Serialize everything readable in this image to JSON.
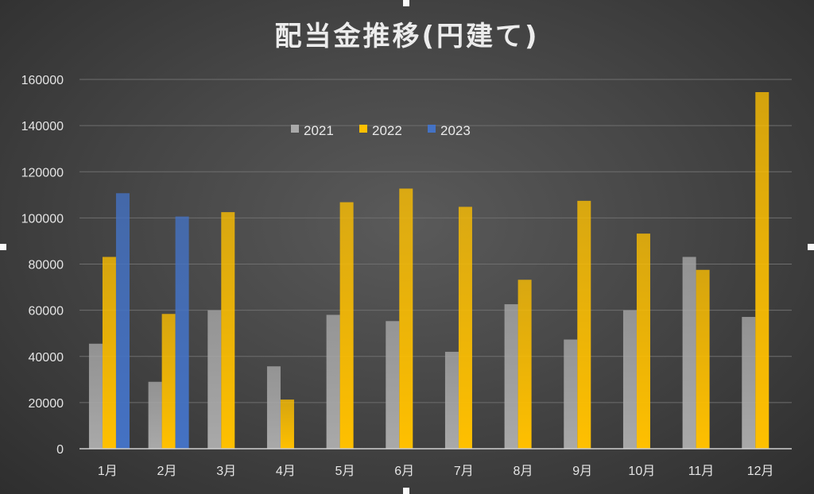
{
  "chart_data": {
    "type": "bar",
    "title": "配当金推移(円建て)",
    "categories": [
      "1月",
      "2月",
      "3月",
      "4月",
      "5月",
      "6月",
      "7月",
      "8月",
      "9月",
      "10月",
      "11月",
      "12月"
    ],
    "series": [
      {
        "name": "2021",
        "color": "#a9a9a9",
        "values": [
          45500,
          29000,
          60000,
          35700,
          58000,
          55300,
          42000,
          62600,
          47300,
          60000,
          83100,
          57100
        ]
      },
      {
        "name": "2022",
        "color": "#ffc000",
        "values": [
          83100,
          58400,
          102500,
          21300,
          106800,
          112700,
          104800,
          73200,
          107400,
          93200,
          77500,
          154500
        ]
      },
      {
        "name": "2023",
        "color": "#4472c4",
        "values": [
          110700,
          100600,
          null,
          null,
          null,
          null,
          null,
          null,
          null,
          null,
          null,
          null
        ]
      }
    ],
    "ylim": [
      0,
      160000
    ],
    "yticks": [
      "0",
      "20000",
      "40000",
      "60000",
      "80000",
      "100000",
      "120000",
      "140000",
      "160000"
    ],
    "xlabel": "",
    "ylabel": "",
    "grid": true,
    "legend_position": "top"
  }
}
